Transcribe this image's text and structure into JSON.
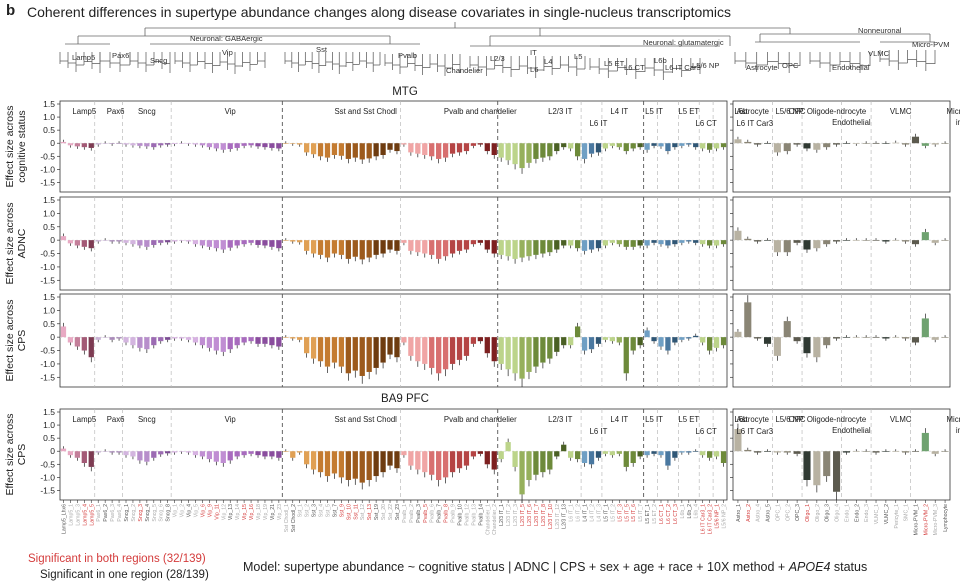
{
  "figure": {
    "panel_letter": "b",
    "title": "Coherent differences in supertype abundance changes along disease covariates in single-nucleus transcriptomics",
    "legend_red": "Significant in both regions (32/139)",
    "legend_black": "Significant in one region (28/139)",
    "model_prefix": "Model: supertype abundance ~ cognitive status | ADNC | CPS + sex + age + race + 10X method + ",
    "model_gene": "APOE4",
    "model_suffix": " status"
  },
  "tree": {
    "labels": [
      "Neuronal: GABAergic",
      "Lamp5",
      "Pax6",
      "Sncg",
      "Vip",
      "Sst",
      "Pvalb",
      "Chandelier",
      "IT",
      "L2/3",
      "L4",
      "L5",
      "L6",
      "L5 ET",
      "L6 CT",
      "L6b",
      "L6 IT Car3",
      "L5/6 NP",
      "Neuronal: glutamatergic",
      "Nonneuronal",
      "Astrocyte",
      "OPC",
      "Endothelial",
      "VLMC",
      "Micro-PVM"
    ]
  },
  "region_labels": {
    "mtg": "MTG",
    "pfc": "BA9 PFC"
  },
  "group_labels": [
    {
      "name": "Lamp5",
      "center": 3.5
    },
    {
      "name": "Pax6",
      "center": 8
    },
    {
      "name": "Sncg",
      "center": 12.5
    },
    {
      "name": "Vip",
      "center": 24.5
    },
    {
      "name": "Sst and Sst Chodl",
      "center": 44
    },
    {
      "name": "Pvalb and chandelier",
      "center": 60.5
    },
    {
      "name": "L2/3 IT",
      "center": 72,
      "row": 0
    },
    {
      "name": "L4 IT",
      "center": 80.5,
      "row": 0
    },
    {
      "name": "L6 IT",
      "center": 77.5,
      "row": 1
    },
    {
      "name": "L5 IT",
      "center": 85.5,
      "row": 0
    },
    {
      "name": "L5 ET",
      "center": 90.5,
      "row": 0
    },
    {
      "name": "L6 CT",
      "center": 93,
      "row": 1
    },
    {
      "name": "L6b",
      "center": 98,
      "row": 0
    },
    {
      "name": "L6 IT Car3",
      "center": 100,
      "row": 1
    },
    {
      "name": "L5/6 NP",
      "center": 105,
      "row": 0
    }
  ],
  "nonneuronal_labels": [
    {
      "name": "Astrocyte",
      "center": 2,
      "row": 0
    },
    {
      "name": "OPC",
      "center": 6.5,
      "row": 0
    },
    {
      "name": "Oligode-ndrocyte",
      "center": 10.5,
      "row": 0
    },
    {
      "name": "Endothelial",
      "center": 12,
      "row": 1
    },
    {
      "name": "VLMC",
      "center": 17,
      "row": 0
    },
    {
      "name": "Microglia and",
      "center": 24,
      "row": 0
    },
    {
      "name": "immune",
      "center": 24,
      "row": 1
    }
  ],
  "chart_data": [
    {
      "type": "bar",
      "title": "MTG",
      "ylabel": "Effect size across cognitive status",
      "ylabel_lines": [
        "Effect size across",
        "cognitive status"
      ],
      "ylim": [
        -1.75,
        1.5
      ],
      "yticks": [
        1.5,
        1.0,
        0.5,
        0,
        -0.5,
        -1.0,
        -1.5
      ],
      "ytick_labels": [
        "1.5",
        "1.0",
        "0.5",
        "0",
        "-0.5",
        "-1.0",
        "-1.5"
      ],
      "neuronal_values": [
        0.05,
        -0.08,
        -0.12,
        -0.15,
        -0.18,
        -0.05,
        0.0,
        -0.02,
        0.0,
        -0.05,
        -0.08,
        -0.1,
        -0.12,
        -0.15,
        -0.08,
        -0.05,
        -0.03,
        0.0,
        -0.02,
        -0.05,
        -0.08,
        -0.15,
        -0.2,
        -0.25,
        -0.22,
        -0.18,
        -0.1,
        -0.08,
        -0.12,
        -0.15,
        -0.18,
        -0.2,
        0.0,
        -0.02,
        -0.05,
        -0.35,
        -0.42,
        -0.5,
        -0.55,
        -0.45,
        -0.48,
        -0.6,
        -0.55,
        -0.62,
        -0.58,
        -0.5,
        -0.45,
        -0.25,
        -0.3,
        -0.05,
        -0.35,
        -0.4,
        -0.45,
        -0.5,
        -0.6,
        -0.55,
        -0.4,
        -0.35,
        -0.3,
        -0.1,
        -0.05,
        -0.3,
        -0.45,
        -0.55,
        -0.65,
        -0.8,
        -0.95,
        -0.75,
        -0.6,
        -0.55,
        -0.5,
        -0.3,
        -0.15,
        -0.2,
        -0.5,
        -0.6,
        -0.4,
        -0.35,
        -0.2,
        -0.1,
        -0.15,
        -0.3,
        -0.2,
        -0.15,
        -0.25,
        -0.1,
        -0.12,
        -0.3,
        -0.15,
        -0.1,
        -0.05,
        -0.15,
        -0.2,
        -0.25,
        -0.2,
        -0.15
      ],
      "nonneuronal_values": [
        0.15,
        0.05,
        -0.05,
        0.0,
        -0.35,
        -0.3,
        -0.05,
        -0.2,
        -0.25,
        -0.15,
        -0.05,
        0.0,
        -0.02,
        0.0,
        0.0,
        0.0,
        0.02,
        -0.05,
        0.25,
        -0.1,
        -0.05,
        0.0
      ]
    },
    {
      "type": "bar",
      "ylabel": "Effect size across ADNC",
      "ylabel_lines": [
        "Effect size across",
        "ADNC"
      ],
      "ylim": [
        -1.75,
        1.5
      ],
      "yticks": [
        1.5,
        1.0,
        0.5,
        0,
        -0.5,
        -1.0,
        -1.5
      ],
      "ytick_labels": [
        "1.5",
        "1.0",
        "0.5",
        "0",
        "-0.5",
        "-1.0",
        "-1.5"
      ],
      "neuronal_values": [
        0.15,
        -0.12,
        -0.2,
        -0.25,
        -0.3,
        -0.05,
        0.0,
        -0.05,
        -0.05,
        -0.1,
        -0.15,
        -0.2,
        -0.25,
        -0.18,
        -0.1,
        -0.08,
        -0.05,
        -0.02,
        -0.05,
        -0.15,
        -0.2,
        -0.25,
        -0.3,
        -0.35,
        -0.28,
        -0.2,
        -0.15,
        -0.1,
        -0.18,
        -0.2,
        -0.25,
        -0.3,
        0.0,
        -0.05,
        -0.08,
        -0.4,
        -0.5,
        -0.55,
        -0.65,
        -0.5,
        -0.55,
        -0.7,
        -0.62,
        -0.72,
        -0.65,
        -0.55,
        -0.5,
        -0.35,
        -0.4,
        -0.1,
        -0.4,
        -0.45,
        -0.5,
        -0.55,
        -0.7,
        -0.6,
        -0.5,
        -0.4,
        -0.35,
        -0.15,
        -0.1,
        -0.35,
        -0.5,
        -0.55,
        -0.6,
        -0.7,
        -0.65,
        -0.6,
        -0.55,
        -0.5,
        -0.45,
        -0.35,
        -0.2,
        -0.2,
        -0.3,
        -0.4,
        -0.35,
        -0.3,
        -0.2,
        -0.1,
        -0.15,
        -0.25,
        -0.25,
        -0.2,
        -0.2,
        -0.1,
        -0.15,
        -0.2,
        -0.15,
        -0.1,
        -0.05,
        -0.1,
        -0.15,
        -0.2,
        -0.2,
        -0.15
      ],
      "nonneuronal_values": [
        0.35,
        0.05,
        -0.05,
        0.0,
        -0.45,
        -0.45,
        -0.1,
        -0.35,
        -0.3,
        -0.15,
        -0.05,
        0.0,
        0.0,
        0.0,
        0.0,
        -0.05,
        0.0,
        -0.05,
        -0.15,
        0.3,
        -0.1,
        0.0
      ]
    },
    {
      "type": "bar",
      "ylabel": "Effect size across CPS",
      "ylabel_lines": [
        "Effect size across",
        "CPS"
      ],
      "ylim": [
        -1.75,
        1.5
      ],
      "yticks": [
        1.5,
        1.0,
        0.5,
        0,
        -0.5,
        -1.0,
        -1.5
      ],
      "ytick_labels": [
        "1.5",
        "1.0",
        "0.5",
        "0",
        "-0.5",
        "-1.0",
        "-1.5"
      ],
      "neuronal_values": [
        0.4,
        -0.2,
        -0.35,
        -0.5,
        -0.75,
        -0.1,
        0.0,
        -0.1,
        -0.05,
        -0.2,
        -0.3,
        -0.4,
        -0.45,
        -0.3,
        -0.15,
        -0.1,
        -0.05,
        -0.05,
        -0.1,
        -0.2,
        -0.3,
        -0.4,
        -0.5,
        -0.55,
        -0.45,
        -0.3,
        -0.2,
        -0.15,
        -0.25,
        -0.25,
        -0.3,
        -0.35,
        0.0,
        -0.05,
        -0.1,
        -0.6,
        -0.8,
        -0.9,
        -1.1,
        -0.95,
        -1.1,
        -1.35,
        -1.25,
        -1.45,
        -1.3,
        -1.15,
        -0.95,
        -0.65,
        -0.75,
        -0.2,
        -0.7,
        -0.9,
        -1.0,
        -1.15,
        -1.35,
        -1.2,
        -1.0,
        -0.85,
        -0.7,
        -0.25,
        -0.15,
        -0.6,
        -0.9,
        -1.0,
        -1.2,
        -1.35,
        -1.55,
        -1.3,
        -1.1,
        -0.95,
        -0.8,
        -0.55,
        -0.3,
        -0.3,
        0.4,
        -0.5,
        -0.45,
        -0.25,
        -0.1,
        -0.15,
        -0.2,
        -1.35,
        -0.5,
        -0.3,
        0.25,
        -0.15,
        -0.35,
        -0.5,
        -0.2,
        -0.1,
        -0.05,
        0.05,
        -0.2,
        -0.5,
        -0.4,
        -0.3
      ],
      "nonneuronal_values": [
        0.2,
        1.3,
        -0.05,
        -0.25,
        -0.7,
        0.6,
        -0.15,
        -0.6,
        -0.75,
        -0.3,
        -0.05,
        0.0,
        0.0,
        0.0,
        0.0,
        -0.05,
        0.0,
        -0.05,
        -0.2,
        0.7,
        -0.1,
        0.0
      ]
    },
    {
      "type": "bar",
      "title": "BA9 PFC",
      "ylabel": "Effect size across CPS",
      "ylabel_lines": [
        "Effect size across",
        "CPS"
      ],
      "ylim": [
        -1.75,
        1.5
      ],
      "yticks": [
        1.5,
        1.0,
        0.5,
        0,
        -0.5,
        -1.0,
        -1.5
      ],
      "ytick_labels": [
        "1.5",
        "1.0",
        "0.5",
        "0",
        "-0.5",
        "-1.0",
        "-1.5"
      ],
      "neuronal_values": [
        0.1,
        -0.15,
        -0.25,
        -0.45,
        -0.6,
        -0.05,
        0.0,
        -0.05,
        -0.05,
        -0.15,
        -0.2,
        -0.35,
        -0.4,
        -0.25,
        -0.12,
        -0.08,
        -0.05,
        -0.02,
        -0.05,
        -0.15,
        -0.2,
        -0.3,
        -0.4,
        -0.45,
        -0.35,
        -0.2,
        -0.15,
        -0.1,
        -0.15,
        -0.2,
        -0.2,
        -0.25,
        0.0,
        -0.25,
        -0.05,
        -0.5,
        -0.7,
        -0.8,
        -0.95,
        -0.85,
        -1.0,
        -1.1,
        -1.05,
        -1.2,
        -1.1,
        -0.95,
        -0.8,
        -0.55,
        -0.65,
        -0.15,
        -0.55,
        -0.7,
        -0.8,
        -0.9,
        -1.1,
        -1.0,
        -0.8,
        -0.65,
        -0.55,
        -0.2,
        -0.1,
        -0.5,
        -0.7,
        -0.3,
        0.35,
        -0.6,
        -1.65,
        -1.1,
        -0.9,
        -0.8,
        -0.7,
        -0.2,
        0.25,
        -0.25,
        -0.3,
        -0.45,
        -0.5,
        -0.25,
        -0.1,
        -0.15,
        -0.1,
        -0.6,
        -0.45,
        -0.2,
        -0.15,
        -0.1,
        -0.15,
        -0.55,
        -0.25,
        -0.05,
        -0.05,
        0.0,
        -0.15,
        -0.25,
        -0.2,
        -0.45
      ],
      "nonneuronal_values": [
        0.85,
        0.05,
        -0.05,
        0.0,
        -0.05,
        -0.05,
        -0.1,
        -1.1,
        -1.3,
        -0.95,
        -1.55,
        -0.05,
        0.0,
        0.0,
        -0.05,
        0.0,
        0.0,
        -0.05,
        0.0,
        0.7,
        -0.1,
        0.0
      ]
    }
  ],
  "xtick_labels": {
    "neuronal": [
      "Lamp5_Lhx6",
      "Lamp5_1",
      "Lamp5_3",
      "Lamp5_4",
      "Lamp5_5",
      "Pax6_1",
      "Pax6_2",
      "Pax6_3",
      "Pax6_4",
      "Sncg_1",
      "Sncg_2",
      "Sncg_3",
      "Sncg_4",
      "Sncg_5",
      "Sncg_6",
      "Sncg_8",
      "Vip_1",
      "Vip_2",
      "Vip_4",
      "Vip_5",
      "Vip_6",
      "Vip_9",
      "Vip_11",
      "Vip_12",
      "Vip_13",
      "Vip_14",
      "Vip_15",
      "Vip_16",
      "Vip_18",
      "Vip_19",
      "Vip_21",
      "Vip_23",
      "Sst Chodl_1",
      "Sst Chodl_2",
      "Sst_1",
      "Sst_2",
      "Sst_3",
      "Sst_4",
      "Sst_5",
      "Sst_7",
      "Sst_9",
      "Sst_10",
      "Sst_11",
      "Sst_12",
      "Sst_13",
      "Sst_19",
      "Sst_20",
      "Sst_22",
      "Sst_23",
      "Pvalb_1",
      "Pvalb_2",
      "Pvalb_3",
      "Pvalb_5",
      "Pvalb_6",
      "Pvalb_7",
      "Pvalb_8",
      "Pvalb_9",
      "Pvalb_10",
      "Pvalb_12",
      "Pvalb_13",
      "Pvalb_14",
      "Chandelier_1",
      "Chandelier_2",
      "L2/3 IT_1",
      "L2/3 IT_2",
      "L2/3 IT_3",
      "L2/3 IT_5",
      "L2/3 IT_6",
      "L2/3 IT_7",
      "L2/3 IT_8",
      "L2/3 IT_10",
      "L2/3 IT_12",
      "L2/3 IT_13",
      "L6 IT_1",
      "L6 IT_2",
      "L4 IT_1",
      "L4 IT_2",
      "L4 IT_3",
      "L5 IT_1",
      "L5 IT_2",
      "L5 IT_3",
      "L5 IT_5",
      "L5 IT_6",
      "L5 IT_7",
      "L5 ET_1",
      "L5 ET_2",
      "L6 CT_1",
      "L6 CT_2",
      "L6 CT_3",
      "L6b_1",
      "L6b_2",
      "L6b_4",
      "L6 IT Car3_1",
      "L6 IT Car3_2",
      "L5/6 NP_1",
      "L5/6 NP_2"
    ],
    "nonneuronal": [
      "Astro_1",
      "Astro_2",
      "Astro_4",
      "Astro_5",
      "OPC_1",
      "OPC_2",
      "OPC_3",
      "Oligo_1",
      "Oligo_2",
      "Oligo_3",
      "Oligo_4",
      "Endo_1",
      "Endo_2",
      "Endo_3",
      "VLMC_1",
      "VLMC_2",
      "Pericyte_1",
      "SMC_1",
      "Micro-PVM_1",
      "Micro-PVM_2",
      "Micro-PVM_3",
      "Lymphocyte"
    ]
  },
  "colors": {
    "lamp5": [
      "#e8a9c3",
      "#c47f9a",
      "#a35a76",
      "#7d3b52"
    ],
    "pax6": [
      "#c9b3d6",
      "#a98ab9"
    ],
    "sncg": [
      "#d3b5df",
      "#b78ecb",
      "#9c6bb3",
      "#7b4b93"
    ],
    "vip": [
      "#d7b2e2",
      "#c08ed3",
      "#a86bbe",
      "#8a4d9e"
    ],
    "sst": [
      "#e0a054",
      "#c47b30",
      "#9c5a1c",
      "#6e3c10"
    ],
    "pvalb": [
      "#f0a5a5",
      "#d86f6f",
      "#b54444",
      "#7d2020"
    ],
    "it": [
      "#bcd48a",
      "#96b05c",
      "#6d8a3a",
      "#4a6024"
    ],
    "deep": [
      "#6f9fc4",
      "#4a78a0",
      "#2f5675",
      "#1e3a52"
    ],
    "nonneuronal": [
      "#b8b2a2",
      "#8a8575",
      "#5c5a4e",
      "#303a33"
    ],
    "highlight": "#d43c3c",
    "axis": "#333333"
  }
}
